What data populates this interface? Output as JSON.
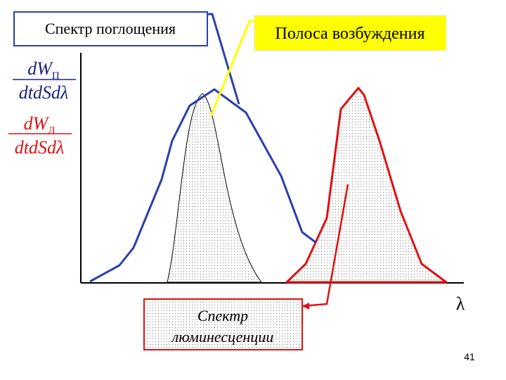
{
  "labels": {
    "absorption": "Спектр поглощения",
    "excitation": "Полоса возбуждения",
    "luminescence": [
      "Спектр",
      "люминесценции"
    ]
  },
  "axis": {
    "x_label": "λ",
    "y_labels": [
      {
        "numerator": "dW",
        "subscript": "П",
        "denominator": "dtdSdλ"
      },
      {
        "numerator": "dW",
        "subscript": "Л",
        "denominator": "dtdSdλ"
      }
    ]
  },
  "page_number": "41"
}
